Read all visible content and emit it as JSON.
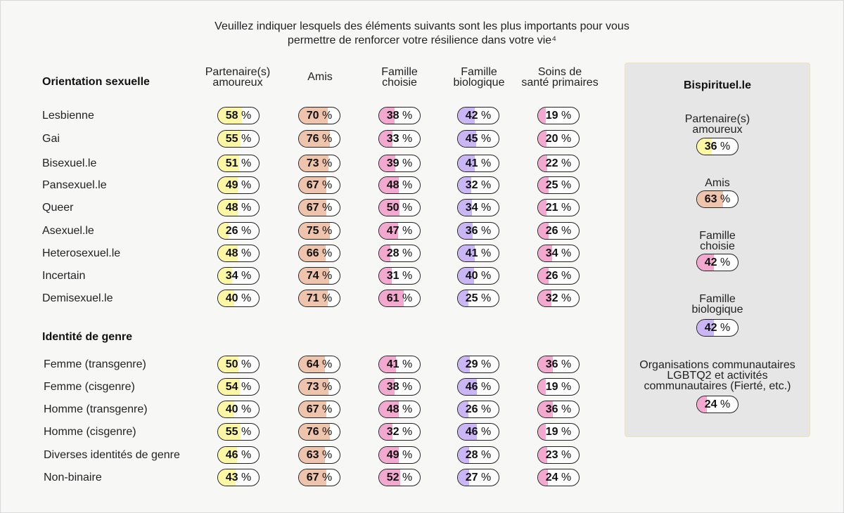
{
  "title_lines": [
    "Veuillez indiquer lesquels des éléments suivants sont les plus importants pour vous",
    "permettre de renforcer votre résilience dans votre vie⁴"
  ],
  "colors": {
    "partenaires": "#fcf7a4",
    "amis": "#efc4ac",
    "famille_choisie": "#f3a9cf",
    "famille_biologique": "#cab5f5",
    "soins": "#f3a9cf"
  },
  "chart_data": {
    "type": "table",
    "unit": "%",
    "columns": [
      "Partenaire(s)\namoureux",
      "Amis",
      "Famille\nchoisie",
      "Famille\nbiologique",
      "Soins de\nsanté primaires"
    ],
    "groups": [
      {
        "title": "Orientation sexuelle",
        "rows": [
          {
            "label": "Lesbienne",
            "values": [
              58,
              70,
              38,
              42,
              19
            ]
          },
          {
            "label": "Gai",
            "values": [
              55,
              76,
              33,
              45,
              20
            ]
          },
          {
            "label": "Bisexuel.le",
            "values": [
              51,
              73,
              39,
              41,
              22
            ]
          },
          {
            "label": "Pansexuel.le",
            "values": [
              49,
              67,
              48,
              32,
              25
            ]
          },
          {
            "label": "Queer",
            "values": [
              48,
              67,
              50,
              34,
              21
            ]
          },
          {
            "label": "Asexuel.le",
            "values": [
              26,
              75,
              47,
              36,
              26
            ]
          },
          {
            "label": "Heterosexuel.le",
            "values": [
              48,
              66,
              28,
              41,
              34
            ]
          },
          {
            "label": "Incertain",
            "values": [
              34,
              74,
              31,
              40,
              26
            ]
          },
          {
            "label": "Demisexuel.le",
            "values": [
              40,
              71,
              61,
              25,
              32
            ]
          }
        ]
      },
      {
        "title": "Identité de genre",
        "rows": [
          {
            "label": "Femme (transgenre)",
            "values": [
              50,
              64,
              41,
              29,
              36
            ]
          },
          {
            "label": "Femme (cisgenre)",
            "values": [
              54,
              73,
              38,
              46,
              19
            ]
          },
          {
            "label": "Homme (transgenre)",
            "values": [
              40,
              67,
              48,
              26,
              36
            ]
          },
          {
            "label": "Homme (cisgenre)",
            "values": [
              55,
              76,
              32,
              46,
              19
            ]
          },
          {
            "label": "Diverses identités de genre",
            "values": [
              46,
              63,
              49,
              28,
              23
            ]
          },
          {
            "label": "Non-binaire",
            "values": [
              43,
              67,
              52,
              27,
              24
            ]
          }
        ]
      }
    ],
    "panel": {
      "title": "Bispirituel.le",
      "items": [
        {
          "label": "Partenaire(s)\namoureux",
          "value": 36,
          "color_key": "partenaires"
        },
        {
          "label": "Amis",
          "value": 63,
          "color_key": "amis"
        },
        {
          "label": "Famille\nchoisie",
          "value": 42,
          "color_key": "famille_choisie"
        },
        {
          "label": "Famille\nbiologique",
          "value": 42,
          "color_key": "famille_biologique"
        },
        {
          "label": "Organisations communautaires\nLGBTQ2 et activités\ncommunautaires (Fierté, etc.)",
          "value": 24,
          "color_key": "soins"
        }
      ]
    }
  }
}
